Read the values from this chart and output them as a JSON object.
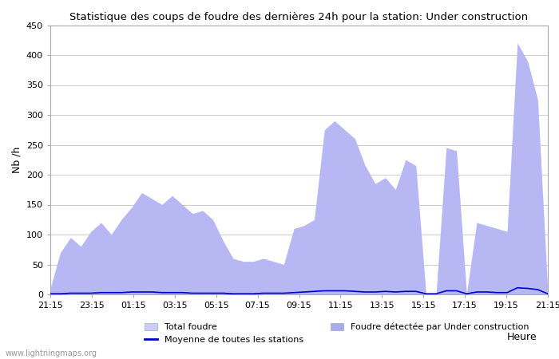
{
  "title": "Statistique des coups de foudre des dernières 24h pour la station: Under construction",
  "xlabel": "Heure",
  "ylabel": "Nb /h",
  "watermark": "www.lightningmaps.org",
  "ylim": [
    0,
    450
  ],
  "yticks": [
    0,
    50,
    100,
    150,
    200,
    250,
    300,
    350,
    400,
    450
  ],
  "xtick_labels": [
    "21:15",
    "23:15",
    "01:15",
    "03:15",
    "05:15",
    "07:15",
    "09:15",
    "11:15",
    "13:15",
    "15:15",
    "17:15",
    "19:15",
    "21:15"
  ],
  "fill_color_total": "#ccccff",
  "fill_color_station": "#aaaaee",
  "line_color_mean": "#0000cc",
  "background_color": "#ffffff",
  "legend": {
    "total_foudre": "Total foudre",
    "mean": "Moyenne de toutes les stations",
    "station": "Foudre détectée par Under construction"
  },
  "total_foudre": [
    10,
    70,
    95,
    80,
    105,
    120,
    100,
    125,
    145,
    170,
    160,
    150,
    165,
    150,
    135,
    140,
    125,
    90,
    60,
    55,
    55,
    60,
    55,
    50,
    110,
    115,
    125,
    275,
    290,
    275,
    260,
    215,
    185,
    195,
    175,
    225,
    215,
    0,
    0,
    245,
    240,
    0,
    120,
    115,
    110,
    105,
    420,
    390,
    325,
    0
  ],
  "mean_foudre": [
    1,
    1,
    2,
    2,
    2,
    3,
    3,
    3,
    4,
    4,
    4,
    3,
    3,
    3,
    2,
    2,
    2,
    2,
    1,
    1,
    1,
    2,
    2,
    2,
    3,
    4,
    5,
    6,
    6,
    6,
    5,
    4,
    4,
    5,
    4,
    5,
    5,
    1,
    1,
    6,
    6,
    1,
    4,
    4,
    3,
    3,
    11,
    10,
    8,
    1
  ],
  "num_points": 50
}
